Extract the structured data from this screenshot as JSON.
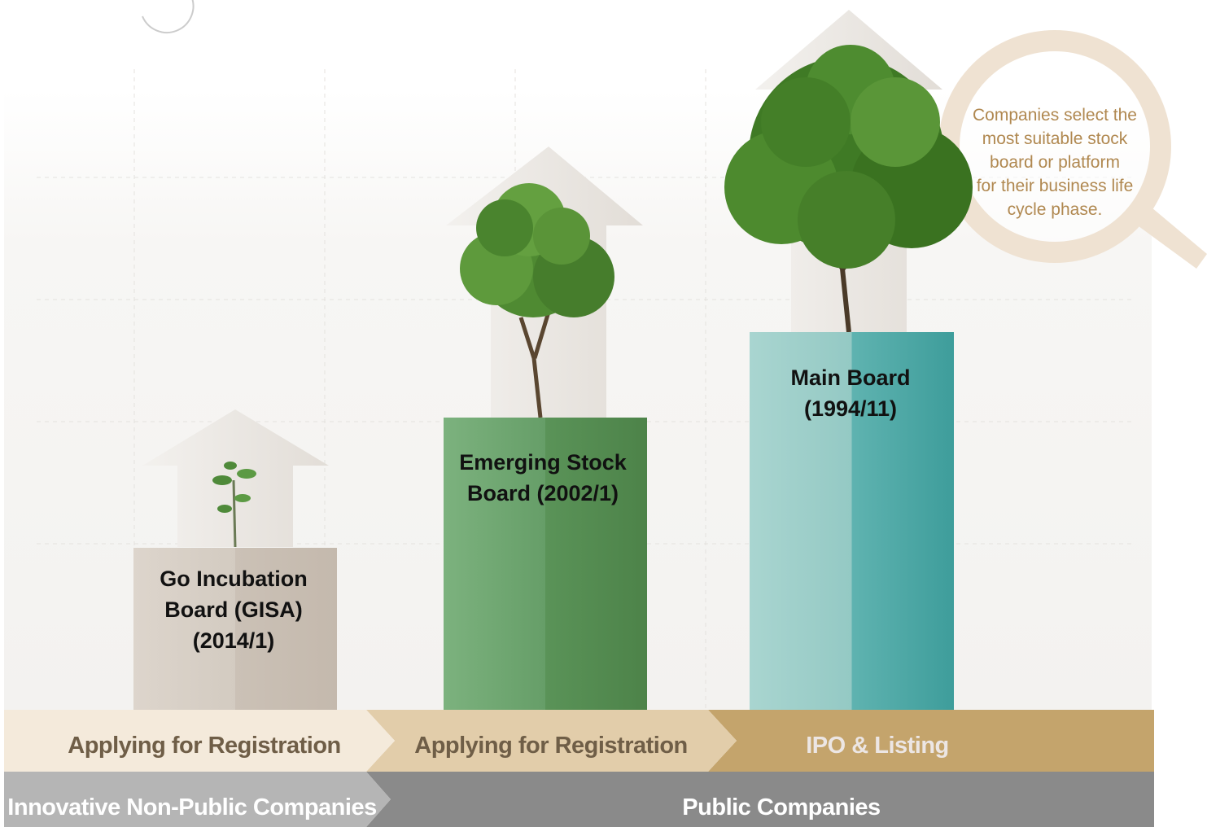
{
  "callout": {
    "lines": [
      "Companies select the",
      "most suitable stock",
      "board or platform",
      "for their business life",
      "cycle phase."
    ]
  },
  "boards": [
    {
      "lines": [
        "Go Incubation",
        "Board (GISA)",
        "(2014/1)"
      ]
    },
    {
      "lines": [
        "Emerging Stock",
        "Board (2002/1)"
      ]
    },
    {
      "lines": [
        "Main Board",
        "(1994/11)"
      ]
    }
  ],
  "stages": [
    "Applying for Registration",
    "Applying for Registration",
    "IPO & Listing"
  ],
  "company_types": [
    "Innovative Non-Public Companies",
    "Public Companies"
  ]
}
